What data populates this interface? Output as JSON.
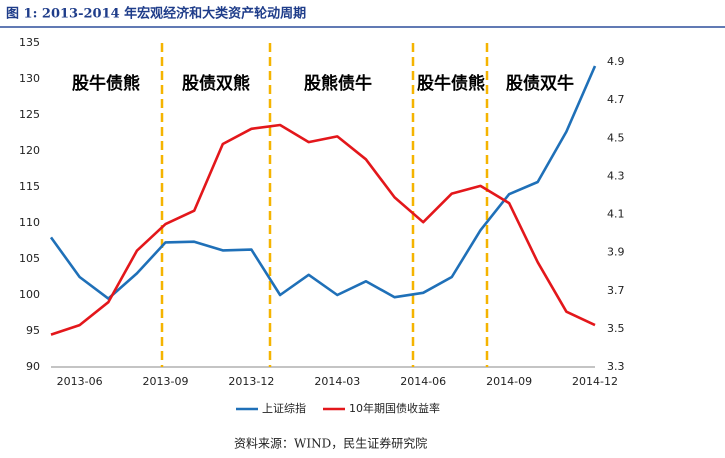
{
  "title": "图 1:   2013-2014 年宏观经济和大类资产轮动周期",
  "source": "资料来源：WIND，民生证券研究院",
  "chart_data": {
    "type": "line",
    "categories": [
      null,
      "2013-06",
      null,
      null,
      "2013-09",
      null,
      null,
      "2013-12",
      null,
      null,
      "2014-03",
      null,
      null,
      "2014-06",
      null,
      null,
      "2014-09",
      null,
      null,
      "2014-12"
    ],
    "series": [
      {
        "name": "上证综指",
        "color": "#1f70b8",
        "values": [
          108,
          102.5,
          99.5,
          103,
          107.3,
          107.4,
          106.2,
          106.3,
          100,
          102.8,
          100,
          101.9,
          99.7,
          100.3,
          102.5,
          109,
          114,
          115.7,
          122.7,
          131.8
        ]
      },
      {
        "name": "10年期国债收益率",
        "color": "#e3171b",
        "axis": "y2",
        "values": [
          3.47,
          3.52,
          3.64,
          3.91,
          4.05,
          4.12,
          4.47,
          4.55,
          4.57,
          4.48,
          4.51,
          4.39,
          4.19,
          4.06,
          4.21,
          4.25,
          4.16,
          3.85,
          3.59,
          3.52
        ]
      }
    ],
    "ylim": [
      90,
      135
    ],
    "yticks": [
      90,
      95,
      100,
      105,
      110,
      115,
      120,
      125,
      130,
      135
    ],
    "y2lim": [
      3.3,
      5.0
    ],
    "y2ticks": [
      3.3,
      3.5,
      3.7,
      3.9,
      4.1,
      4.3,
      4.5,
      4.7,
      4.9
    ],
    "annotations": [
      "股牛债熊",
      "股债双熊",
      "股熊债牛",
      "股牛债熊",
      "股债双牛"
    ],
    "legend": "bottom"
  }
}
